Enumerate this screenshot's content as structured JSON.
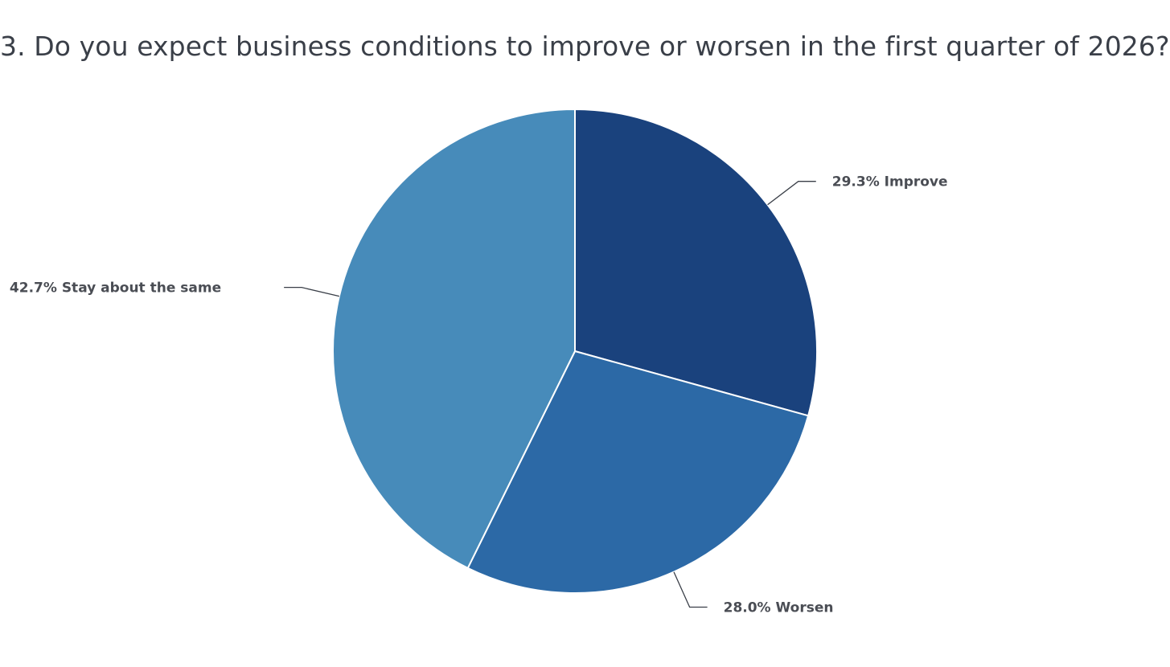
{
  "chart_data": {
    "type": "pie",
    "title": "3. Do you expect business conditions to improve or worsen in the first quarter of 2026?",
    "slices": [
      {
        "label": "Improve",
        "value": 29.3,
        "display": "29.3% Improve",
        "color": "#1a427d"
      },
      {
        "label": "Worsen",
        "value": 28.0,
        "display": "28.0% Worsen",
        "color": "#2c69a6"
      },
      {
        "label": "Stay about the same",
        "value": 42.7,
        "display": "42.7% Stay about the same",
        "color": "#478bba"
      }
    ],
    "start_angle_deg": 0,
    "direction": "clockwise",
    "legend": "none"
  }
}
